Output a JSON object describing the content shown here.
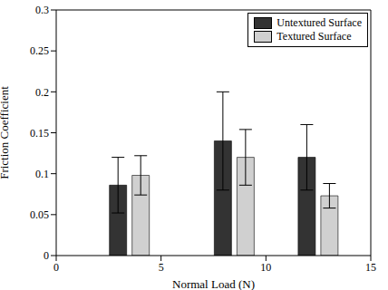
{
  "chart_data": {
    "type": "bar",
    "x_label": "Normal Load (N)",
    "y_label": "Friction Coefficient",
    "x": [
      3.5,
      8.5,
      12.5
    ],
    "series": [
      {
        "name": "Untextured Surface",
        "color": "#333333",
        "values": [
          0.086,
          0.14,
          0.12
        ],
        "errors": [
          0.034,
          0.06,
          0.04
        ]
      },
      {
        "name": "Textured Surface",
        "color": "#d0d0d0",
        "values": [
          0.098,
          0.12,
          0.073
        ],
        "errors": [
          0.024,
          0.034,
          0.015
        ]
      }
    ],
    "xlim": [
      0,
      15
    ],
    "xticks": [
      0,
      5,
      10,
      15
    ],
    "ylim": [
      0,
      0.3
    ],
    "yticks": [
      0,
      0.05,
      0.1,
      0.15,
      0.2,
      0.25,
      0.3
    ],
    "grid": false,
    "legend": "upper right"
  }
}
